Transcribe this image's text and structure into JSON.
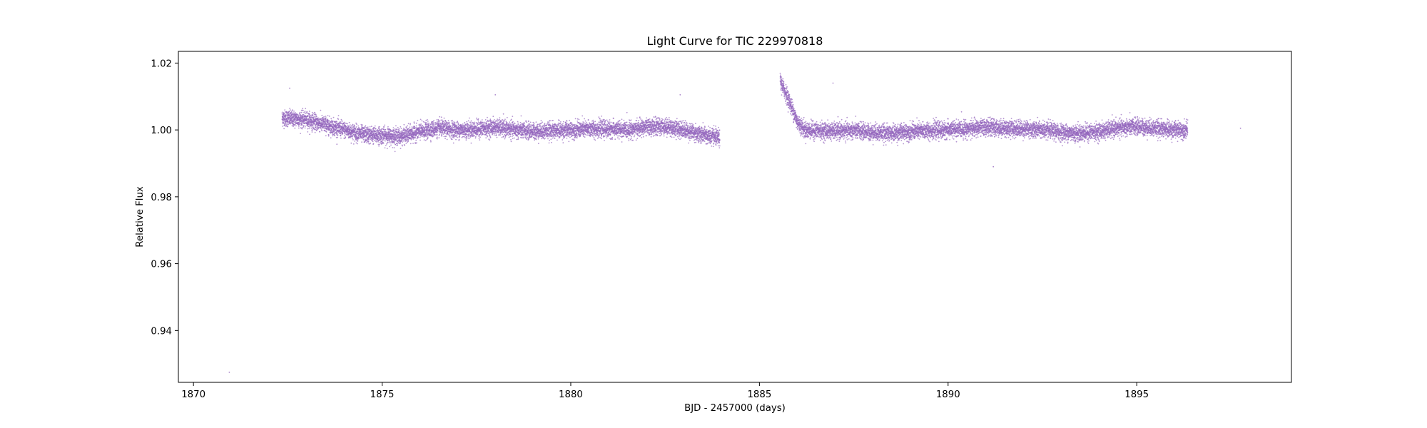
{
  "chart_data": {
    "type": "scatter",
    "title": "Light Curve for TIC 229970818",
    "xlabel": "BJD - 2457000 (days)",
    "ylabel": "Relative Flux",
    "xlim": [
      1869.6,
      1899.1
    ],
    "ylim": [
      0.9245,
      1.0235
    ],
    "xticks": [
      1870,
      1875,
      1880,
      1885,
      1890,
      1895
    ],
    "xtick_labels": [
      "1870",
      "1875",
      "1880",
      "1885",
      "1890",
      "1895"
    ],
    "yticks": [
      0.94,
      0.96,
      0.98,
      1.0,
      1.02
    ],
    "ytick_labels": [
      "0.94",
      "0.96",
      "0.98",
      "1.00",
      "1.02"
    ],
    "grid": false,
    "marker_color": "#9467bd",
    "series": [
      {
        "segments": [
          {
            "x_range": [
              1872.35,
              1883.95
            ],
            "trend": [
              [
                1872.35,
                1.0036
              ],
              [
                1873.0,
                1.003
              ],
              [
                1873.5,
                1.0015
              ],
              [
                1874.0,
                1.0
              ],
              [
                1874.5,
                0.9986
              ],
              [
                1875.0,
                0.9983
              ],
              [
                1875.5,
                0.998
              ],
              [
                1876.0,
                0.9995
              ],
              [
                1876.5,
                1.0005
              ],
              [
                1877.0,
                1.0
              ],
              [
                1877.5,
                1.0002
              ],
              [
                1878.0,
                1.0008
              ],
              [
                1878.5,
                1.0
              ],
              [
                1879.0,
                0.9996
              ],
              [
                1879.5,
                0.9998
              ],
              [
                1880.0,
                1.0
              ],
              [
                1880.5,
                1.0003
              ],
              [
                1881.0,
                1.0002
              ],
              [
                1881.5,
                1.0
              ],
              [
                1882.0,
                1.0008
              ],
              [
                1882.5,
                1.001
              ],
              [
                1883.0,
                1.0
              ],
              [
                1883.5,
                0.9985
              ],
              [
                1883.95,
                0.9975
              ]
            ],
            "scatter": 0.0022
          },
          {
            "x_range": [
              1885.55,
              1896.35
            ],
            "trend": [
              [
                1885.55,
                1.0145
              ],
              [
                1885.7,
                1.011
              ],
              [
                1885.85,
                1.007
              ],
              [
                1886.0,
                1.0025
              ],
              [
                1886.2,
                1.0
              ],
              [
                1886.5,
                0.9998
              ],
              [
                1887.0,
                0.9996
              ],
              [
                1887.5,
                0.9998
              ],
              [
                1888.0,
                0.9993
              ],
              [
                1888.5,
                0.999
              ],
              [
                1889.0,
                0.9995
              ],
              [
                1889.5,
                0.9998
              ],
              [
                1890.0,
                1.0
              ],
              [
                1890.5,
                1.0003
              ],
              [
                1891.0,
                1.0008
              ],
              [
                1891.5,
                1.0005
              ],
              [
                1892.0,
                1.0003
              ],
              [
                1892.5,
                1.0
              ],
              [
                1893.0,
                0.9993
              ],
              [
                1893.5,
                0.999
              ],
              [
                1894.0,
                0.9995
              ],
              [
                1894.5,
                1.0005
              ],
              [
                1895.0,
                1.001
              ],
              [
                1895.5,
                1.0005
              ],
              [
                1896.0,
                1.0
              ],
              [
                1896.35,
                1.0
              ]
            ],
            "scatter": 0.0022
          }
        ],
        "isolated_points": [
          [
            1870.95,
            0.9275
          ],
          [
            1897.75,
            1.0005
          ],
          [
            1886.95,
            1.014
          ],
          [
            1872.55,
            1.0125
          ],
          [
            1891.2,
            0.989
          ],
          [
            1882.9,
            1.0105
          ],
          [
            1878.0,
            1.0105
          ]
        ]
      }
    ]
  }
}
